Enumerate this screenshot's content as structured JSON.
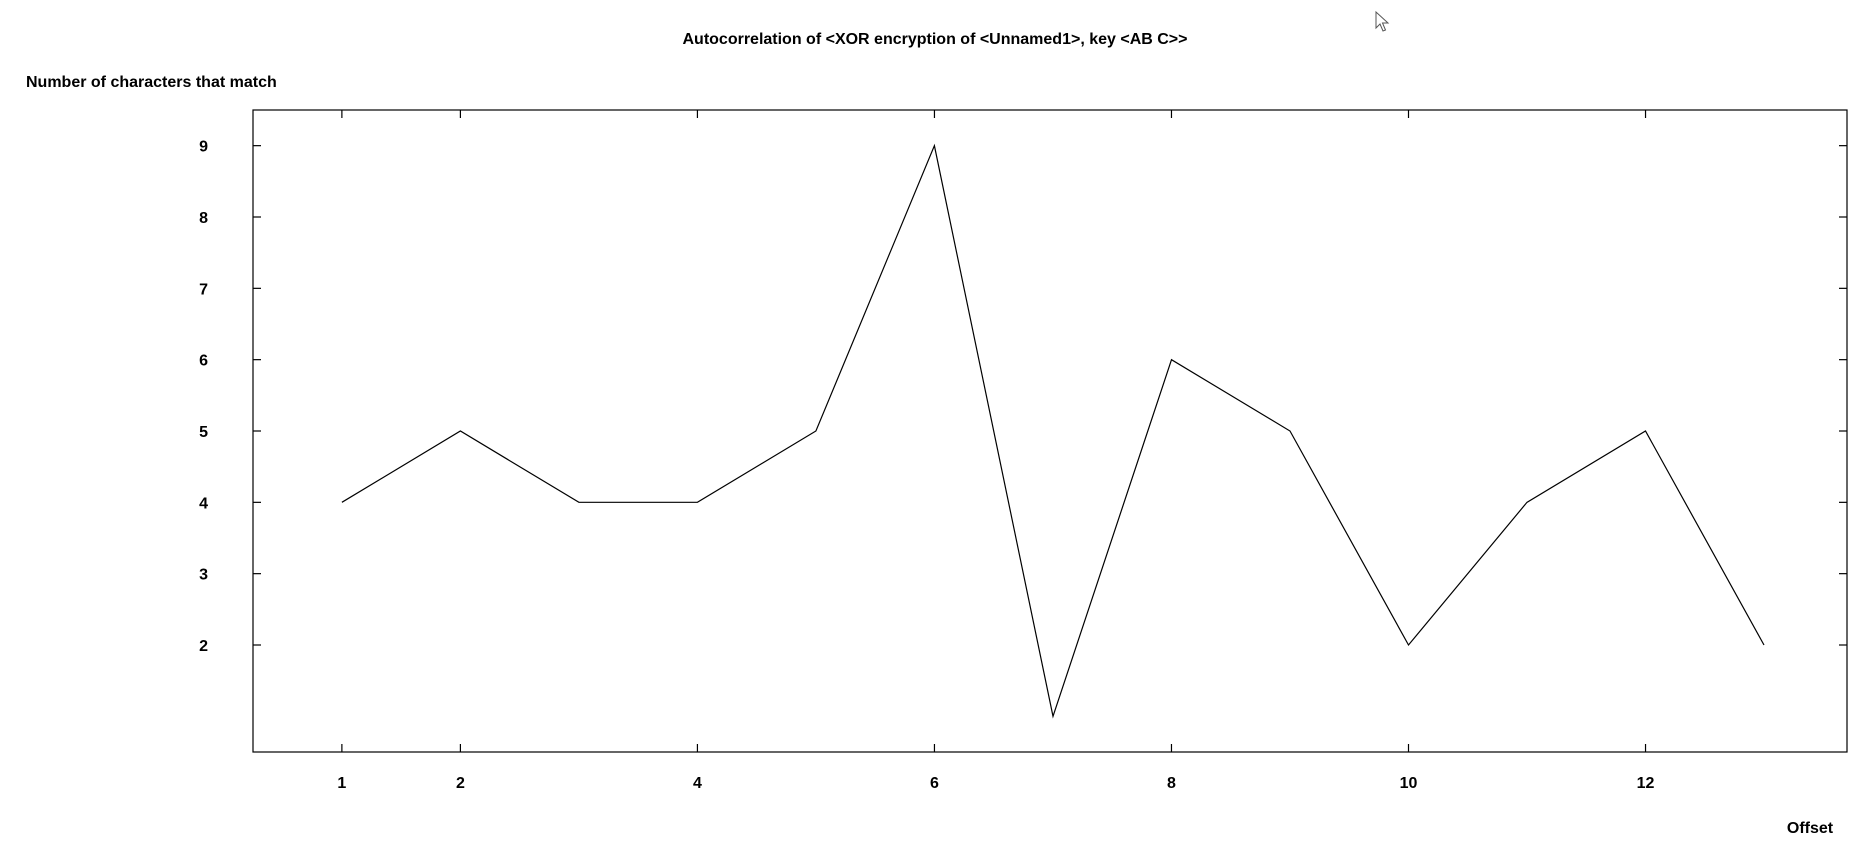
{
  "chart_data": {
    "type": "line",
    "title": "Autocorrelation of <XOR encryption of <Unnamed1>, key <AB C>>",
    "xlabel": "Offset",
    "ylabel": "Number of characters that match",
    "xlim": [
      0.25,
      13.7
    ],
    "ylim": [
      0.5,
      9.5
    ],
    "x_ticks": [
      1,
      2,
      4,
      6,
      8,
      10,
      12
    ],
    "y_ticks": [
      2,
      3,
      4,
      5,
      6,
      7,
      8,
      9
    ],
    "grid": false,
    "legend": "none",
    "line_color": "#000000",
    "series": [
      {
        "x": [
          1,
          2,
          3,
          4,
          5,
          6,
          7,
          8,
          9,
          10,
          11,
          12,
          13
        ],
        "values": [
          4,
          5,
          4,
          4,
          5,
          9,
          1,
          6,
          5,
          2,
          4,
          5,
          2
        ]
      }
    ]
  },
  "cursor": {
    "icon": "arrow-cursor-icon"
  }
}
